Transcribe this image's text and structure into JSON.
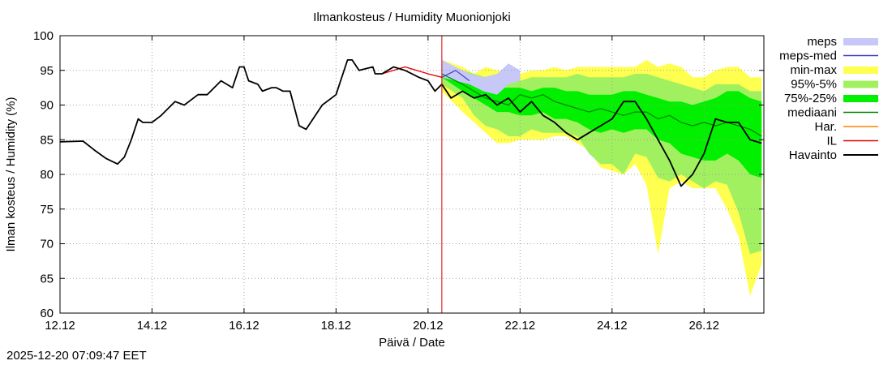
{
  "chart_data": {
    "type": "line",
    "title": "Ilmankosteus / Humidity  Muonionjoki",
    "xlabel": "Päivä / Date",
    "ylabel": "Ilman kosteus / Humidity (%)",
    "ylim": [
      60,
      100
    ],
    "xlim": [
      0,
      15.3
    ],
    "grid": true,
    "y_ticks": [
      60,
      65,
      70,
      75,
      80,
      85,
      90,
      95,
      100
    ],
    "x_ticks": [
      {
        "day": 0,
        "label": "12.12"
      },
      {
        "day": 2,
        "label": "14.12"
      },
      {
        "day": 4,
        "label": "16.12"
      },
      {
        "day": 6,
        "label": "18.12"
      },
      {
        "day": 8,
        "label": "20.12"
      },
      {
        "day": 10,
        "label": "22.12"
      },
      {
        "day": 12,
        "label": "24.12"
      },
      {
        "day": 14,
        "label": "26.12"
      }
    ],
    "forecast_start_day": 8.3,
    "legend": [
      {
        "label": "meps",
        "color": "#c8c8f8",
        "style": "box"
      },
      {
        "label": "meps-med",
        "color": "#4040c0",
        "style": "line"
      },
      {
        "label": "min-max",
        "color": "#ffff50",
        "style": "box"
      },
      {
        "label": "95%-5%",
        "color": "#a0f060",
        "style": "box"
      },
      {
        "label": "75%-25%",
        "color": "#00f000",
        "style": "box"
      },
      {
        "label": "mediaani",
        "color": "#008000",
        "style": "line"
      },
      {
        "label": "Har.",
        "color": "#ff8000",
        "style": "line"
      },
      {
        "label": "IL",
        "color": "#e00000",
        "style": "line"
      },
      {
        "label": "Havainto",
        "color": "#000000",
        "style": "line"
      }
    ],
    "series": [
      {
        "name": "Havainto",
        "x": [
          0,
          0.5,
          0.75,
          1.0,
          1.25,
          1.4,
          1.55,
          1.7,
          1.8,
          2.0,
          2.2,
          2.35,
          2.5,
          2.7,
          3.0,
          3.2,
          3.5,
          3.75,
          3.9,
          4.0,
          4.1,
          4.3,
          4.4,
          4.6,
          4.7,
          4.85,
          5.0,
          5.2,
          5.35,
          5.7,
          6.0,
          6.15,
          6.25,
          6.35,
          6.5,
          6.8,
          6.85,
          7.0,
          7.25,
          7.5,
          7.8,
          8.0,
          8.15,
          8.3,
          8.5,
          8.75,
          9.0,
          9.25,
          9.5,
          9.75,
          10.0,
          10.25,
          10.5,
          10.75,
          11.0,
          11.25,
          11.5,
          11.75,
          12.0,
          12.25,
          12.5,
          12.75,
          13.0,
          13.25,
          13.5,
          13.75,
          14.0,
          14.25,
          14.5,
          14.75,
          15.0,
          15.25
        ],
        "values": [
          84.7,
          84.8,
          83.5,
          82.3,
          81.5,
          82.5,
          85.0,
          88.0,
          87.5,
          87.5,
          88.5,
          89.5,
          90.5,
          90.0,
          91.5,
          91.5,
          93.5,
          92.5,
          95.5,
          95.5,
          93.5,
          93.0,
          92.0,
          92.5,
          92.5,
          92.0,
          92.0,
          87.0,
          86.5,
          90.0,
          91.5,
          94.5,
          96.5,
          96.5,
          95.0,
          95.5,
          94.5,
          94.5,
          95.5,
          95.0,
          94.0,
          93.5,
          92.0,
          93.0,
          91.0,
          92.0,
          91.0,
          91.5,
          90.0,
          91.0,
          89.0,
          90.5,
          88.5,
          87.5,
          86.0,
          85.0,
          86.0,
          87.0,
          88.0,
          90.5,
          90.5,
          88.0,
          85.0,
          82.0,
          78.3,
          80.0,
          83.0,
          88.0,
          87.5,
          87.5,
          85.0,
          84.5
        ]
      },
      {
        "name": "mediaani",
        "x": [
          8.3,
          8.75,
          9.0,
          9.25,
          9.5,
          9.75,
          10.0,
          10.25,
          10.5,
          10.75,
          11.0,
          11.25,
          11.5,
          11.75,
          12.0,
          12.25,
          12.5,
          12.75,
          13.0,
          13.25,
          13.5,
          13.75,
          14.0,
          14.25,
          14.5,
          14.75,
          15.0,
          15.25
        ],
        "values": [
          94.5,
          93.0,
          92.0,
          91.0,
          90.5,
          90.0,
          91.5,
          91.0,
          91.5,
          90.5,
          90.0,
          89.5,
          89.0,
          89.5,
          89.0,
          88.5,
          89.0,
          89.0,
          88.0,
          88.5,
          87.5,
          87.0,
          87.5,
          87.0,
          87.5,
          87.0,
          86.5,
          85.5
        ]
      },
      {
        "name": "meps-med",
        "x": [
          8.3,
          8.6,
          8.9
        ],
        "values": [
          94.0,
          95.0,
          93.5
        ]
      },
      {
        "name": "IL",
        "x": [
          7.0,
          7.5,
          8.0,
          8.3
        ],
        "values": [
          94.5,
          95.5,
          94.5,
          94.0
        ]
      }
    ],
    "bands": [
      {
        "name": "min-max",
        "x": [
          8.3,
          8.75,
          9.0,
          9.25,
          9.5,
          9.75,
          10.0,
          10.25,
          10.5,
          10.75,
          11.0,
          11.25,
          11.5,
          11.75,
          12.0,
          12.25,
          12.5,
          12.75,
          13.0,
          13.25,
          13.5,
          13.75,
          14.0,
          14.25,
          14.5,
          14.75,
          15.0,
          15.25
        ],
        "low": [
          92.0,
          89.0,
          87.5,
          86.0,
          84.5,
          84.5,
          85.0,
          85.0,
          85.0,
          85.5,
          85.5,
          84.5,
          83.5,
          81.0,
          80.5,
          80.0,
          81.5,
          78.5,
          68.5,
          78.0,
          79.0,
          78.0,
          78.0,
          78.0,
          75.0,
          71.0,
          62.5,
          67.0
        ],
        "high": [
          96.5,
          95.5,
          94.5,
          95.5,
          95.0,
          95.0,
          94.5,
          95.0,
          95.0,
          95.5,
          95.0,
          95.5,
          95.5,
          95.5,
          95.5,
          95.5,
          95.5,
          96.5,
          95.5,
          96.0,
          95.5,
          94.0,
          94.0,
          95.0,
          95.5,
          95.5,
          94.0,
          94.0
        ]
      },
      {
        "name": "95%-5%",
        "x": [
          8.3,
          8.75,
          9.0,
          9.25,
          9.5,
          9.75,
          10.0,
          10.25,
          10.5,
          10.75,
          11.0,
          11.25,
          11.5,
          11.75,
          12.0,
          12.25,
          12.5,
          12.75,
          13.0,
          13.25,
          13.5,
          13.75,
          14.0,
          14.25,
          14.5,
          14.75,
          15.0,
          15.25
        ],
        "low": [
          93.0,
          91.0,
          88.5,
          87.0,
          86.5,
          85.5,
          85.5,
          86.5,
          86.0,
          86.0,
          86.0,
          85.5,
          83.0,
          81.5,
          81.5,
          80.0,
          83.0,
          82.5,
          79.5,
          79.0,
          80.0,
          79.0,
          78.0,
          79.0,
          78.5,
          74.5,
          68.5,
          69.0
        ],
        "high": [
          96.0,
          95.0,
          94.5,
          94.0,
          93.5,
          94.0,
          93.5,
          94.0,
          94.0,
          94.0,
          94.0,
          94.5,
          94.0,
          94.0,
          94.0,
          94.0,
          94.5,
          94.5,
          94.0,
          93.5,
          93.0,
          92.5,
          92.0,
          93.0,
          93.0,
          93.0,
          92.0,
          92.0
        ]
      },
      {
        "name": "75%-25%",
        "x": [
          8.3,
          8.75,
          9.0,
          9.25,
          9.5,
          9.75,
          10.0,
          10.25,
          10.5,
          10.75,
          11.0,
          11.25,
          11.5,
          11.75,
          12.0,
          12.25,
          12.5,
          12.75,
          13.0,
          13.25,
          13.5,
          13.75,
          14.0,
          14.25,
          14.5,
          14.75,
          15.0,
          15.25
        ],
        "low": [
          94.0,
          92.0,
          91.0,
          90.0,
          89.0,
          89.0,
          88.5,
          88.5,
          89.0,
          88.0,
          88.0,
          87.5,
          86.5,
          86.0,
          86.5,
          86.0,
          86.5,
          86.5,
          85.0,
          84.5,
          83.0,
          82.5,
          82.0,
          82.0,
          83.0,
          82.0,
          80.0,
          79.5
        ],
        "high": [
          95.5,
          94.0,
          93.5,
          93.0,
          92.5,
          92.5,
          92.5,
          92.0,
          92.5,
          92.5,
          92.0,
          92.0,
          91.5,
          91.5,
          91.5,
          92.0,
          92.0,
          91.5,
          91.0,
          90.5,
          90.5,
          90.0,
          90.5,
          91.0,
          92.0,
          92.0,
          91.0,
          90.5
        ]
      },
      {
        "name": "meps",
        "x": [
          8.3,
          8.6,
          8.9,
          9.2,
          9.5,
          9.75,
          10.0
        ],
        "low": [
          94.0,
          93.5,
          93.0,
          92.0,
          91.5,
          93.0,
          93.5
        ],
        "high": [
          96.5,
          95.5,
          94.5,
          94.0,
          94.5,
          96.0,
          95.0
        ]
      }
    ]
  },
  "footer": {
    "timestamp": "2025-12-20 07:09:47 EET"
  }
}
